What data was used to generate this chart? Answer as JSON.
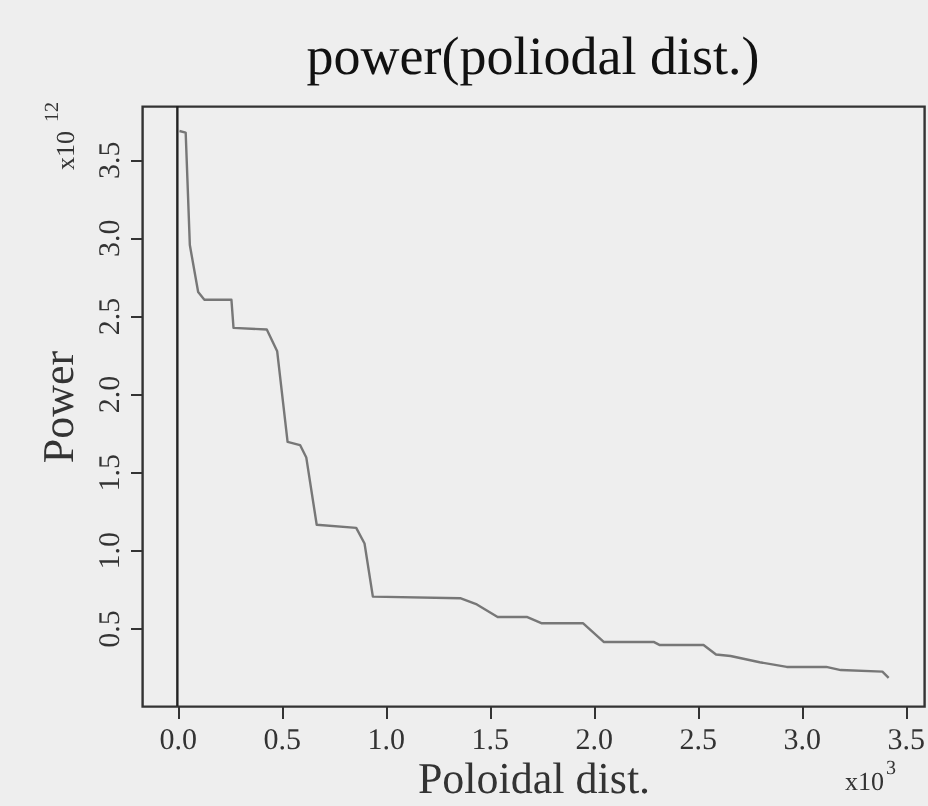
{
  "chart_data": {
    "type": "line",
    "title": "power(poliodal dist.)",
    "xlabel": "Poloidal dist.",
    "ylabel": "Power",
    "annotations": [
      "x10$^{12}$",
      "x10$^{3}$"
    ],
    "x": [
      0.01,
      0.04,
      0.06,
      0.1,
      0.13,
      0.26,
      0.27,
      0.43,
      0.48,
      0.53,
      0.59,
      0.62,
      0.67,
      0.86,
      0.9,
      0.94,
      1.36,
      1.44,
      1.54,
      1.68,
      1.75,
      1.95,
      2.05,
      2.29,
      2.32,
      2.53,
      2.59,
      2.66,
      2.8,
      2.93,
      3.12,
      3.19,
      3.39,
      3.42
    ],
    "series": [
      {
        "color": "#777777",
        "values": [
          3.68,
          3.67,
          2.95,
          2.65,
          2.6,
          2.6,
          2.42,
          2.41,
          2.27,
          1.69,
          1.67,
          1.59,
          1.16,
          1.14,
          1.04,
          0.7,
          0.69,
          0.65,
          0.57,
          0.57,
          0.53,
          0.53,
          0.41,
          0.41,
          0.39,
          0.39,
          0.33,
          0.32,
          0.28,
          0.25,
          0.25,
          0.23,
          0.22,
          0.18
        ]
      }
    ],
    "xlim": [
      -0.17,
      3.59
    ],
    "ylim": [
      0,
      3.84
    ],
    "xticks": [
      {
        "value": 0,
        "label": "0.0"
      },
      0.5,
      {
        "value": 1,
        "label": "1.0"
      },
      1.5,
      {
        "value": 2,
        "label": "2.0"
      },
      2.5,
      {
        "value": 3,
        "label": "3.0"
      },
      3.5
    ],
    "yticks": [
      0.5,
      {
        "value": 1,
        "label": "1.0"
      },
      1.5,
      {
        "value": 2,
        "label": "2.0"
      },
      2.5,
      {
        "value": 3,
        "label": "3.0"
      },
      3.5
    ],
    "ref_lines": [
      {
        "axis": "x",
        "value": 0,
        "color": "#222222"
      }
    ],
    "grid": false,
    "marker": "none",
    "line_style": "solid"
  }
}
